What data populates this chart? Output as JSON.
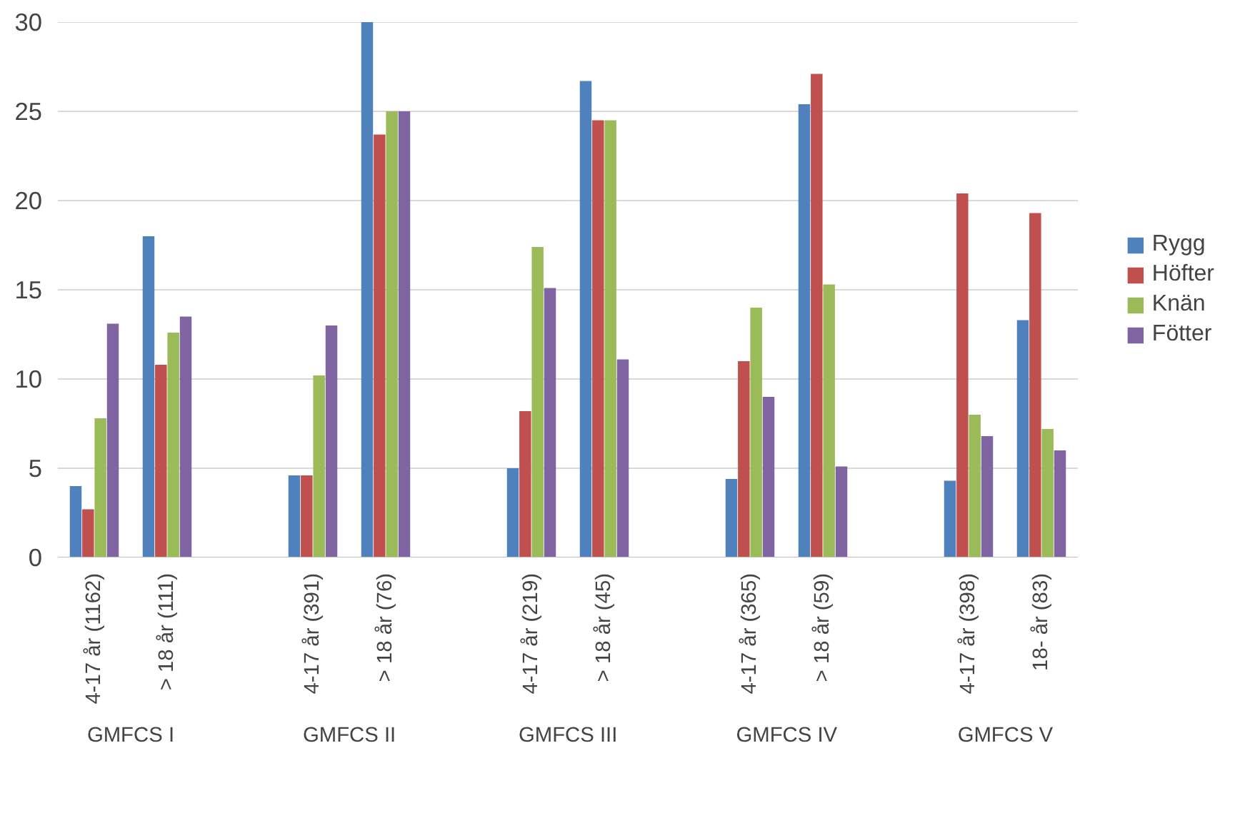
{
  "chart_data": {
    "type": "bar",
    "categories": [
      "4-17 år (1162)",
      "> 18 år (111)",
      null,
      "4-17 år (391)",
      "> 18 år (76)",
      null,
      "4-17 år (219)",
      "> 18 år (45)",
      null,
      "4-17 år (365)",
      "> 18 år (59)",
      null,
      "4-17 år (398)",
      "18- år (83)"
    ],
    "series": [
      {
        "name": "Rygg",
        "color": "#4f81bd",
        "values": [
          4.0,
          18.0,
          null,
          4.6,
          30.0,
          null,
          5.0,
          26.7,
          null,
          4.4,
          25.4,
          null,
          4.3,
          13.3
        ]
      },
      {
        "name": "Höfter",
        "color": "#c0504d",
        "values": [
          2.7,
          10.8,
          null,
          4.6,
          23.7,
          null,
          8.2,
          24.5,
          null,
          11.0,
          27.1,
          null,
          20.4,
          19.3
        ]
      },
      {
        "name": "Knän",
        "color": "#9bbb59",
        "values": [
          7.8,
          12.6,
          null,
          10.2,
          25.0,
          null,
          17.4,
          24.5,
          null,
          14.0,
          15.3,
          null,
          8.0,
          7.2
        ]
      },
      {
        "name": "Fötter",
        "color": "#8064a2",
        "values": [
          13.1,
          13.5,
          null,
          13.0,
          25.0,
          null,
          15.1,
          11.1,
          null,
          9.0,
          5.1,
          null,
          6.8,
          6.0
        ]
      }
    ],
    "annotations": [
      "GMFCS I",
      "GMFCS II",
      "GMFCS III",
      "GMFCS IV",
      "GMFCS V"
    ],
    "ylim": [
      0,
      30
    ],
    "yticks": [
      0,
      5,
      10,
      15,
      20,
      25,
      30
    ],
    "grid": "y",
    "legend": "right"
  }
}
